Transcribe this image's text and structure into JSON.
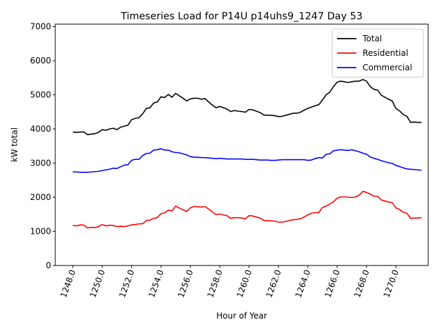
{
  "chart_data": {
    "type": "line",
    "title": "Timeseries Load for P14U p14uhs9_1247  Day 53",
    "xlabel": "Hour of Year",
    "ylabel": "kW total",
    "xlim": [
      1246.8,
      1272.2
    ],
    "ylim": [
      0,
      7070
    ],
    "xticks": [
      1248,
      1250,
      1252,
      1254,
      1256,
      1258,
      1260,
      1262,
      1264,
      1266,
      1268,
      1270
    ],
    "xtick_labels": [
      "1248.0",
      "1250.0",
      "1252.0",
      "1254.0",
      "1256.0",
      "1258.0",
      "1260.0",
      "1262.0",
      "1264.0",
      "1266.0",
      "1268.0",
      "1270.0"
    ],
    "yticks": [
      0,
      1000,
      2000,
      3000,
      4000,
      5000,
      6000,
      7000
    ],
    "ytick_labels": [
      "0",
      "1000",
      "2000",
      "3000",
      "4000",
      "5000",
      "6000",
      "7000"
    ],
    "legend_position": "top-right",
    "x_start": 1248,
    "x_step": 0.25,
    "series": [
      {
        "name": "Total",
        "color": "#000000",
        "values": [
          3910,
          3900,
          3910,
          3910,
          3830,
          3850,
          3860,
          3900,
          3980,
          3960,
          4000,
          4020,
          3980,
          4050,
          4080,
          4110,
          4270,
          4310,
          4330,
          4440,
          4600,
          4620,
          4760,
          4790,
          4940,
          4920,
          5010,
          4930,
          5040,
          4970,
          4900,
          4820,
          4880,
          4900,
          4900,
          4870,
          4890,
          4790,
          4700,
          4620,
          4660,
          4620,
          4580,
          4510,
          4540,
          4520,
          4510,
          4490,
          4570,
          4560,
          4520,
          4480,
          4410,
          4400,
          4400,
          4390,
          4360,
          4370,
          4400,
          4430,
          4460,
          4460,
          4490,
          4550,
          4600,
          4640,
          4680,
          4710,
          4850,
          5000,
          5080,
          5240,
          5370,
          5400,
          5380,
          5360,
          5380,
          5400,
          5400,
          5450,
          5400,
          5240,
          5160,
          5140,
          4990,
          4930,
          4870,
          4820,
          4600,
          4530,
          4420,
          4370,
          4190,
          4200,
          4190,
          4190
        ]
      },
      {
        "name": "Residential",
        "color": "#ff0000",
        "values": [
          1170,
          1160,
          1190,
          1180,
          1100,
          1120,
          1110,
          1140,
          1200,
          1160,
          1180,
          1170,
          1140,
          1150,
          1140,
          1160,
          1190,
          1200,
          1220,
          1220,
          1320,
          1330,
          1380,
          1400,
          1520,
          1540,
          1620,
          1600,
          1740,
          1680,
          1630,
          1580,
          1690,
          1730,
          1720,
          1710,
          1730,
          1650,
          1570,
          1490,
          1510,
          1480,
          1460,
          1380,
          1400,
          1400,
          1390,
          1370,
          1460,
          1450,
          1420,
          1390,
          1320,
          1310,
          1310,
          1300,
          1270,
          1270,
          1290,
          1320,
          1340,
          1350,
          1370,
          1420,
          1480,
          1530,
          1550,
          1550,
          1700,
          1740,
          1800,
          1870,
          1970,
          2010,
          2010,
          2000,
          1990,
          2010,
          2060,
          2170,
          2140,
          2090,
          2030,
          2030,
          1920,
          1890,
          1860,
          1840,
          1690,
          1640,
          1560,
          1530,
          1380,
          1390,
          1390,
          1400
        ]
      },
      {
        "name": "Commercial",
        "color": "#0000ff",
        "values": [
          2740,
          2740,
          2730,
          2730,
          2730,
          2740,
          2750,
          2760,
          2780,
          2800,
          2820,
          2850,
          2840,
          2890,
          2940,
          2950,
          3080,
          3110,
          3110,
          3220,
          3280,
          3290,
          3380,
          3390,
          3420,
          3380,
          3380,
          3330,
          3310,
          3300,
          3270,
          3240,
          3190,
          3170,
          3170,
          3160,
          3160,
          3150,
          3140,
          3130,
          3140,
          3130,
          3120,
          3120,
          3120,
          3120,
          3120,
          3110,
          3110,
          3110,
          3100,
          3090,
          3090,
          3090,
          3080,
          3080,
          3090,
          3100,
          3100,
          3100,
          3100,
          3100,
          3100,
          3100,
          3080,
          3090,
          3130,
          3160,
          3150,
          3260,
          3270,
          3360,
          3380,
          3390,
          3380,
          3370,
          3390,
          3360,
          3330,
          3290,
          3260,
          3180,
          3140,
          3110,
          3070,
          3040,
          3010,
          2990,
          2930,
          2900,
          2860,
          2830,
          2820,
          2810,
          2800,
          2790
        ]
      }
    ]
  }
}
